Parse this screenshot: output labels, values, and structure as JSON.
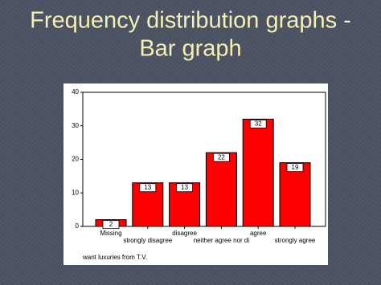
{
  "slide": {
    "title_lines": [
      "Frequency distribution graphs -",
      "Bar graph"
    ]
  },
  "chart_data": {
    "type": "bar",
    "x_label": "want luxuries from T.V.",
    "categories": [
      "Missing",
      "strongly disagree",
      "disagree",
      "neither agree nor di",
      "agree",
      "strongly agree"
    ],
    "values": [
      2,
      13,
      13,
      22,
      32,
      19
    ],
    "color": "#ff0000",
    "ylim": [
      0,
      40
    ],
    "yticks": [
      0,
      10,
      20,
      30,
      40
    ]
  }
}
